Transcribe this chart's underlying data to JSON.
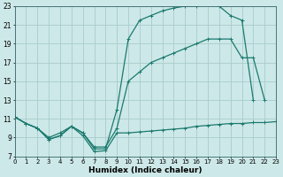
{
  "xlabel": "Humidex (Indice chaleur)",
  "background_color": "#cde8e8",
  "grid_color": "#a8cccc",
  "line_color": "#1a7a6e",
  "xlim": [
    0,
    23
  ],
  "ylim": [
    7,
    23
  ],
  "yticks": [
    7,
    9,
    11,
    13,
    15,
    17,
    19,
    21,
    23
  ],
  "xticks": [
    0,
    1,
    2,
    3,
    4,
    5,
    6,
    7,
    8,
    9,
    10,
    11,
    12,
    13,
    14,
    15,
    16,
    17,
    18,
    19,
    20,
    21,
    22,
    23
  ],
  "line1_x": [
    0,
    1,
    2,
    3,
    4,
    5,
    6,
    7,
    8,
    9,
    10,
    11,
    12,
    13,
    14,
    15,
    16,
    17,
    18,
    19,
    20,
    21,
    22,
    23
  ],
  "line1_y": [
    11.2,
    10.5,
    10.0,
    8.8,
    9.2,
    10.2,
    9.2,
    7.5,
    7.6,
    9.5,
    9.5,
    9.6,
    9.7,
    9.8,
    9.9,
    10.0,
    10.2,
    10.3,
    10.4,
    10.5,
    10.5,
    10.6,
    10.6,
    10.7
  ],
  "line2_x": [
    0,
    1,
    2,
    3,
    4,
    5,
    6,
    7,
    8,
    9,
    10,
    11,
    12,
    13,
    14,
    15,
    16,
    17,
    18,
    19,
    20,
    21
  ],
  "line2_y": [
    11.2,
    10.5,
    10.0,
    9.0,
    9.5,
    10.2,
    9.5,
    7.8,
    7.8,
    12.0,
    19.5,
    21.5,
    22.0,
    22.5,
    22.8,
    23.0,
    23.0,
    23.2,
    23.0,
    22.0,
    21.5,
    13.0
  ],
  "line3_x": [
    0,
    1,
    2,
    3,
    4,
    5,
    6,
    7,
    8,
    9,
    10,
    11,
    12,
    13,
    14,
    15,
    16,
    17,
    18,
    19,
    20,
    21,
    22,
    23
  ],
  "line3_y": [
    11.2,
    10.5,
    10.0,
    8.8,
    9.2,
    10.2,
    9.5,
    8.0,
    8.0,
    10.0,
    15.0,
    16.0,
    17.0,
    17.5,
    18.0,
    18.5,
    19.0,
    19.5,
    19.5,
    19.5,
    17.5,
    17.5,
    13.0,
    null
  ]
}
